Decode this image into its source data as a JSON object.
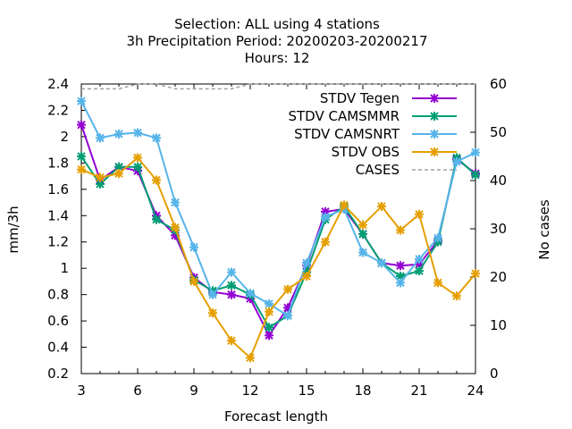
{
  "chart_data": {
    "type": "line",
    "title_lines": [
      "Selection: ALL using     4 stations",
      "3h Precipitation   Period: 20200203-20200217",
      "Hours:  12"
    ],
    "xlabel": "Forecast length",
    "ylabel": "mm/3h",
    "y2label": "No cases",
    "x_ticks": [
      3,
      6,
      9,
      12,
      15,
      18,
      21,
      24
    ],
    "y_ticks": [
      0.2,
      0.4,
      0.6,
      0.8,
      1,
      1.2,
      1.4,
      1.6,
      1.8,
      2,
      2.2,
      2.4
    ],
    "y2_ticks": [
      0,
      10,
      20,
      30,
      40,
      50,
      60
    ],
    "xlim": [
      3,
      24
    ],
    "ylim": [
      0.2,
      2.4
    ],
    "y2lim": [
      0,
      60
    ],
    "grid": false,
    "legend_position": "top-right",
    "series": [
      {
        "name": "STDV Tegen",
        "color": "#9400d3",
        "axis": "y",
        "x": [
          3,
          4,
          5,
          6,
          7,
          8,
          9,
          10,
          11,
          12,
          13,
          14,
          15,
          16,
          17,
          18,
          19,
          20,
          21,
          22,
          23,
          24
        ],
        "values": [
          2.09,
          1.67,
          1.77,
          1.74,
          1.4,
          1.25,
          0.93,
          0.82,
          0.8,
          0.77,
          0.49,
          0.7,
          1.02,
          1.43,
          1.45,
          1.26,
          1.04,
          1.02,
          1.03,
          1.21,
          1.83,
          1.72
        ]
      },
      {
        "name": "STDV CAMSMMR",
        "color": "#009e73",
        "axis": "y",
        "x": [
          3,
          4,
          5,
          6,
          7,
          8,
          9,
          10,
          11,
          12,
          13,
          14,
          15,
          16,
          17,
          18,
          19,
          20,
          21,
          22,
          23,
          24
        ],
        "values": [
          1.85,
          1.64,
          1.77,
          1.77,
          1.37,
          1.29,
          0.91,
          0.83,
          0.87,
          0.8,
          0.55,
          0.64,
          0.97,
          1.37,
          1.47,
          1.26,
          1.04,
          0.94,
          0.98,
          1.2,
          1.84,
          1.71
        ]
      },
      {
        "name": "STDV CAMSNRT",
        "color": "#56b4e9",
        "axis": "y",
        "x": [
          3,
          4,
          5,
          6,
          7,
          8,
          9,
          10,
          11,
          12,
          13,
          14,
          15,
          16,
          17,
          18,
          19,
          20,
          21,
          22,
          23,
          24
        ],
        "values": [
          2.27,
          1.99,
          2.02,
          2.03,
          1.99,
          1.5,
          1.16,
          0.8,
          0.97,
          0.81,
          0.73,
          0.64,
          1.04,
          1.39,
          1.45,
          1.12,
          1.04,
          0.89,
          1.07,
          1.23,
          1.81,
          1.88
        ]
      },
      {
        "name": "STDV OBS",
        "color": "#e69f00",
        "axis": "y",
        "x": [
          3,
          4,
          5,
          6,
          7,
          8,
          9,
          10,
          11,
          12,
          13,
          14,
          15,
          16,
          17,
          18,
          19,
          20,
          21,
          22,
          23,
          24
        ],
        "values": [
          1.75,
          1.69,
          1.72,
          1.84,
          1.67,
          1.31,
          0.9,
          0.66,
          0.45,
          0.32,
          0.67,
          0.84,
          0.94,
          1.2,
          1.48,
          1.33,
          1.47,
          1.29,
          1.41,
          0.89,
          0.79,
          0.96
        ]
      },
      {
        "name": "CASES",
        "color": "#a0a0a0",
        "axis": "y2",
        "dashed": true,
        "x": [
          3,
          4,
          5,
          6,
          7,
          8,
          9,
          10,
          11,
          12,
          13,
          14,
          15,
          16,
          17,
          18,
          19,
          20,
          21,
          22,
          23,
          24
        ],
        "values": [
          59,
          59,
          59,
          60,
          60,
          59,
          59,
          59,
          59,
          60,
          60,
          60,
          60,
          60,
          60,
          60,
          60,
          60,
          60,
          60,
          60,
          60
        ]
      }
    ]
  }
}
